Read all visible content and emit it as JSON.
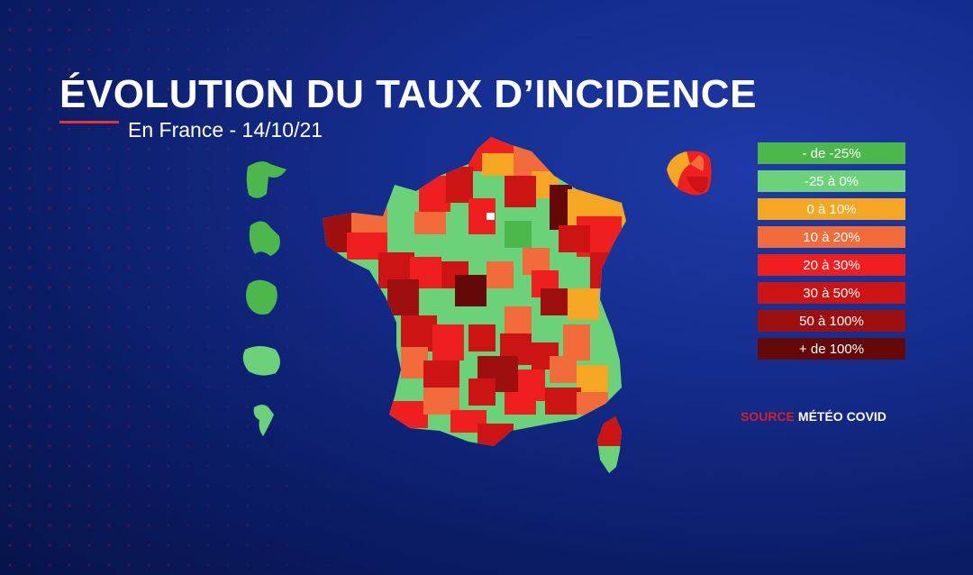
{
  "title": "ÉVOLUTION DU TAUX D’INCIDENCE",
  "subtitle": "En France - 14/10/21",
  "legend": [
    {
      "label": "- de -25%",
      "color": "#4cb84c"
    },
    {
      "label": "-25 à 0%",
      "color": "#6cd27a"
    },
    {
      "label": "0 à 10%",
      "color": "#f5a623"
    },
    {
      "label": "10 à 20%",
      "color": "#f26b3a"
    },
    {
      "label": "20 à 30%",
      "color": "#f01f1f"
    },
    {
      "label": "30 à 50%",
      "color": "#cc1414"
    },
    {
      "label": "50 à 100%",
      "color": "#9e0f0f"
    },
    {
      "label": "+ de 100%",
      "color": "#650808"
    }
  ],
  "source": {
    "key": "SOURCE",
    "value": "MÉTÉO COVID"
  }
}
